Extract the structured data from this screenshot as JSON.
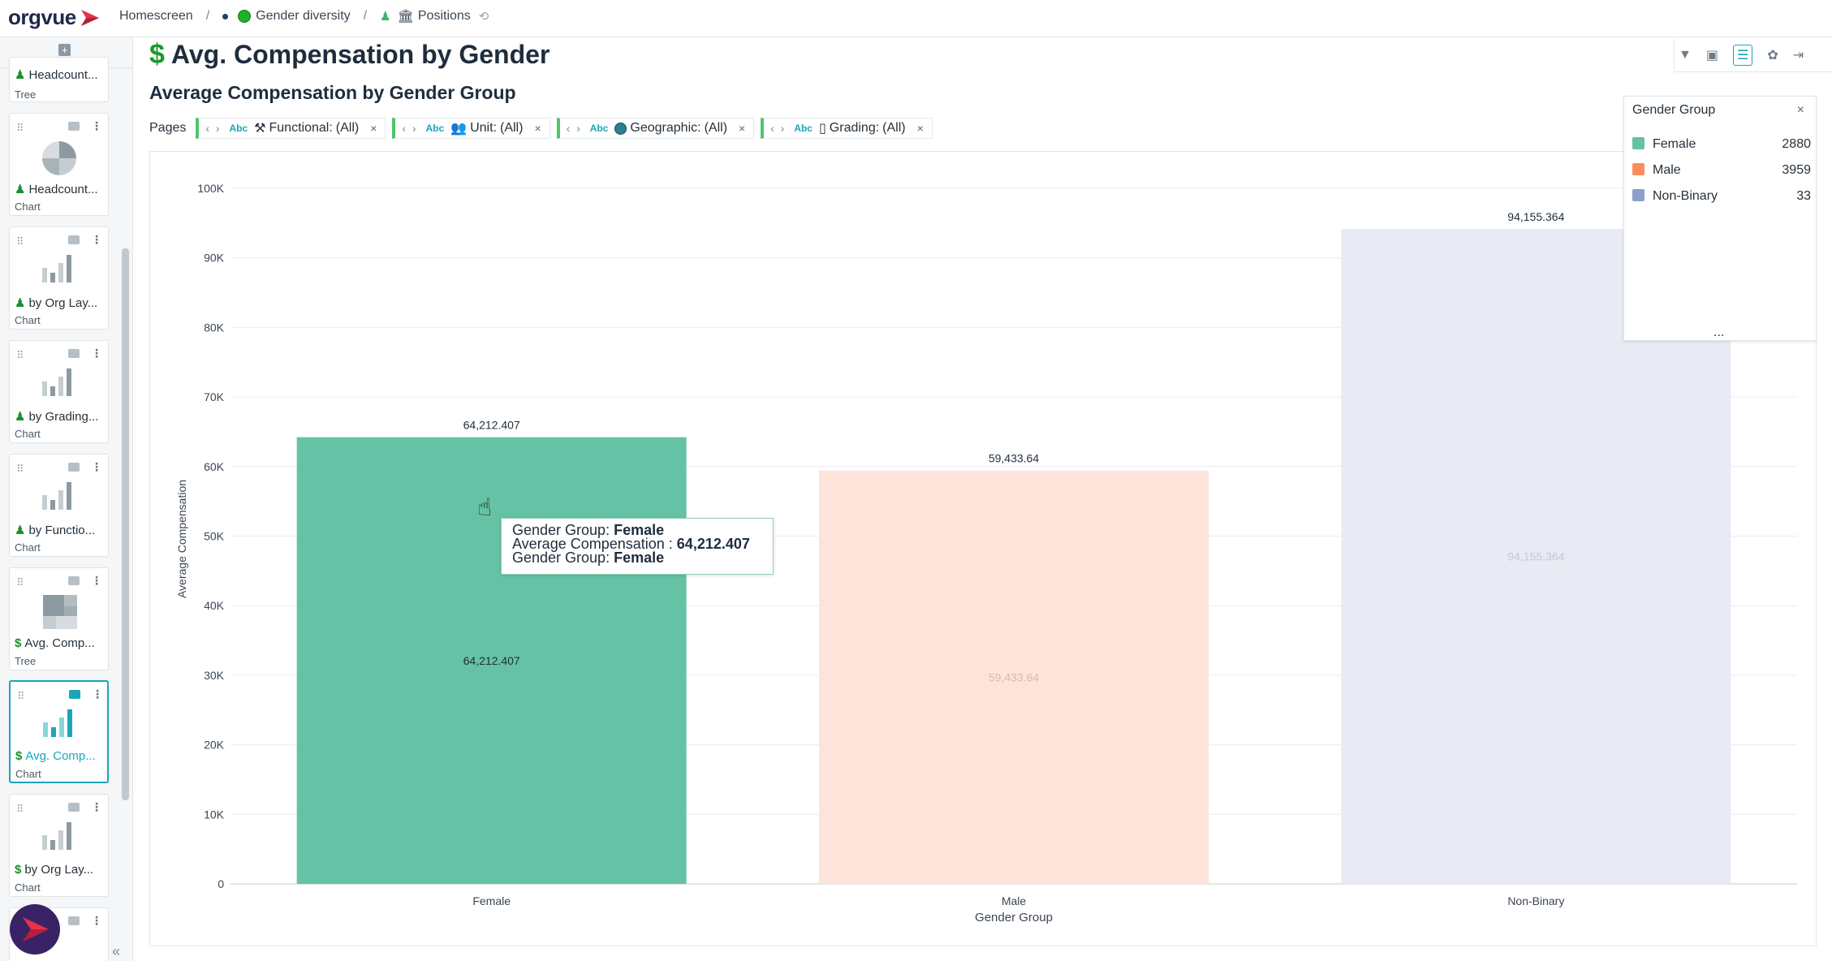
{
  "app": {
    "logo_text": "orgvue",
    "breadcrumbs": [
      {
        "label": "Homescreen"
      },
      {
        "label": "Gender diversity"
      },
      {
        "label": "Positions"
      }
    ]
  },
  "sidebar": {
    "cards": [
      {
        "name": "Headcount...",
        "type": "Tree"
      },
      {
        "name": "Headcount...",
        "type": "Chart"
      },
      {
        "name": "by Org Lay...",
        "type": "Chart"
      },
      {
        "name": "by Grading...",
        "type": "Chart"
      },
      {
        "name": "by Functio...",
        "type": "Chart"
      },
      {
        "name": "Avg. Comp...",
        "type": "Tree"
      },
      {
        "name": "Avg. Comp...",
        "type": "Chart"
      },
      {
        "name": "by Org Lay...",
        "type": "Chart"
      }
    ]
  },
  "header": {
    "title": "Avg. Compensation by Gender",
    "subtitle": "Average Compensation by Gender Group"
  },
  "pages": {
    "label": "Pages",
    "filters": [
      {
        "abc": "Abc",
        "name": "Functional:",
        "value": "(All)"
      },
      {
        "abc": "Abc",
        "name": "Unit:",
        "value": "(All)"
      },
      {
        "abc": "Abc",
        "name": "Geographic:",
        "value": "(All)"
      },
      {
        "abc": "Abc",
        "name": "Grading:",
        "value": "(All)"
      }
    ]
  },
  "legend": {
    "title": "Gender Group",
    "items": [
      {
        "label": "Female",
        "count": "2880",
        "color": "#66c2a5"
      },
      {
        "label": "Male",
        "count": "3959",
        "color": "#fc8d62"
      },
      {
        "label": "Non-Binary",
        "count": "33",
        "color": "#8da0cb"
      }
    ],
    "more": "..."
  },
  "tooltip": {
    "line1_key": "Gender Group: ",
    "line1_val": "Female",
    "line2_key": "Average Compensation : ",
    "line2_val": "64,212.407",
    "line3_key": "Gender Group: ",
    "line3_val": "Female"
  },
  "chart_data": {
    "type": "bar",
    "title": "",
    "xlabel": "Gender Group",
    "ylabel": "Average Compensation",
    "ylim": [
      0,
      100000
    ],
    "yticks": [
      0,
      10000,
      20000,
      30000,
      40000,
      50000,
      60000,
      70000,
      80000,
      90000,
      100000
    ],
    "ytick_labels": [
      "0",
      "10K",
      "20K",
      "30K",
      "40K",
      "50K",
      "60K",
      "70K",
      "80K",
      "90K",
      "100K"
    ],
    "categories": [
      "Female",
      "Male",
      "Non-Binary"
    ],
    "values": [
      64212.407,
      59433.64,
      94155.364
    ],
    "value_labels": [
      "64,212.407",
      "59,433.64",
      "94,155.364"
    ],
    "colors": [
      "#66c2a5",
      "#fde4da",
      "#e8ebf3"
    ],
    "inner_label_colors": [
      "#1f2d3d",
      "#e2b7a6",
      "#c4c9d6"
    ],
    "grid": true
  }
}
